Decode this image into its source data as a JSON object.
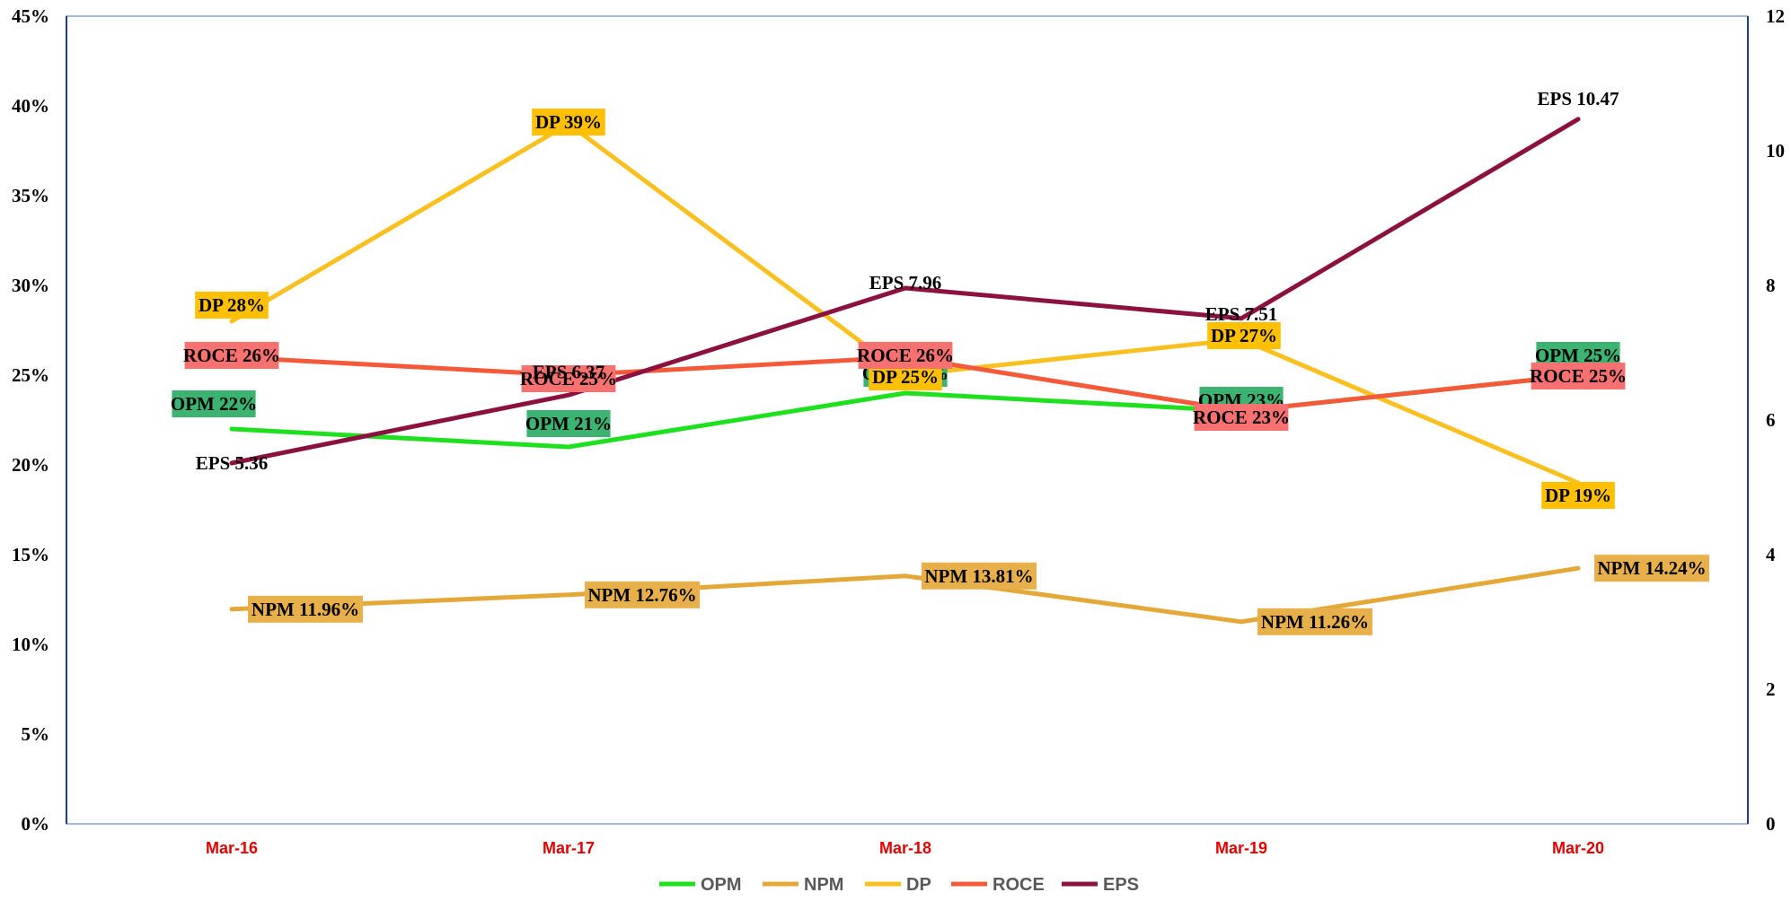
{
  "chart_data": {
    "type": "line",
    "title": "",
    "categories": [
      "Mar-16",
      "Mar-17",
      "Mar-18",
      "Mar-19",
      "Mar-20"
    ],
    "y_left": {
      "ylim": [
        0,
        45
      ],
      "ticks": [
        0,
        5,
        10,
        15,
        20,
        25,
        30,
        35,
        40,
        45
      ],
      "tick_labels": [
        "0%",
        "5%",
        "10%",
        "15%",
        "20%",
        "25%",
        "30%",
        "35%",
        "40%",
        "45%"
      ]
    },
    "y_right": {
      "ylim": [
        0,
        12
      ],
      "ticks": [
        0,
        2,
        4,
        6,
        8,
        10,
        12
      ],
      "tick_labels": [
        "0",
        "2",
        "4",
        "6",
        "8",
        "10",
        "12"
      ]
    },
    "grid": false,
    "legend_position": "bottom",
    "series": [
      {
        "name": "OPM",
        "axis": "left",
        "color": "#1fe01f",
        "label_bg": "#3cb371",
        "values": [
          22,
          21,
          24,
          23,
          25
        ],
        "labels": [
          "OPM 22%",
          "OPM 21%",
          "OPM 24%",
          "OPM 23%",
          "OPM 25%"
        ]
      },
      {
        "name": "NPM",
        "axis": "left",
        "color": "#e3a838",
        "label_bg": "#e8b04a",
        "values": [
          11.96,
          12.76,
          13.81,
          11.26,
          14.24
        ],
        "labels": [
          "NPM 11.96%",
          "NPM 12.76%",
          "NPM 13.81%",
          "NPM 11.26%",
          "NPM 14.24%"
        ]
      },
      {
        "name": "DP",
        "axis": "left",
        "color": "#f9c022",
        "label_bg": "#ffc000",
        "values": [
          28,
          39,
          25,
          27,
          19
        ],
        "labels": [
          "DP 28%",
          "DP 39%",
          "DP 25%",
          "DP 27%",
          "DP 19%"
        ]
      },
      {
        "name": "ROCE",
        "axis": "left",
        "color": "#f45a3a",
        "label_bg": "#f87171",
        "values": [
          26,
          25,
          26,
          23,
          25
        ],
        "labels": [
          "ROCE 26%",
          "ROCE 25%",
          "ROCE 26%",
          "ROCE 23%",
          "ROCE 25%"
        ]
      },
      {
        "name": "EPS",
        "axis": "right",
        "color": "#8b1140",
        "label_bg": "#ffffff",
        "values": [
          5.36,
          6.37,
          7.96,
          7.51,
          10.47
        ],
        "labels": [
          "EPS 5.36",
          "EPS 6.37",
          "EPS 7.96",
          "EPS 7.51",
          "EPS 10.47"
        ]
      }
    ]
  }
}
